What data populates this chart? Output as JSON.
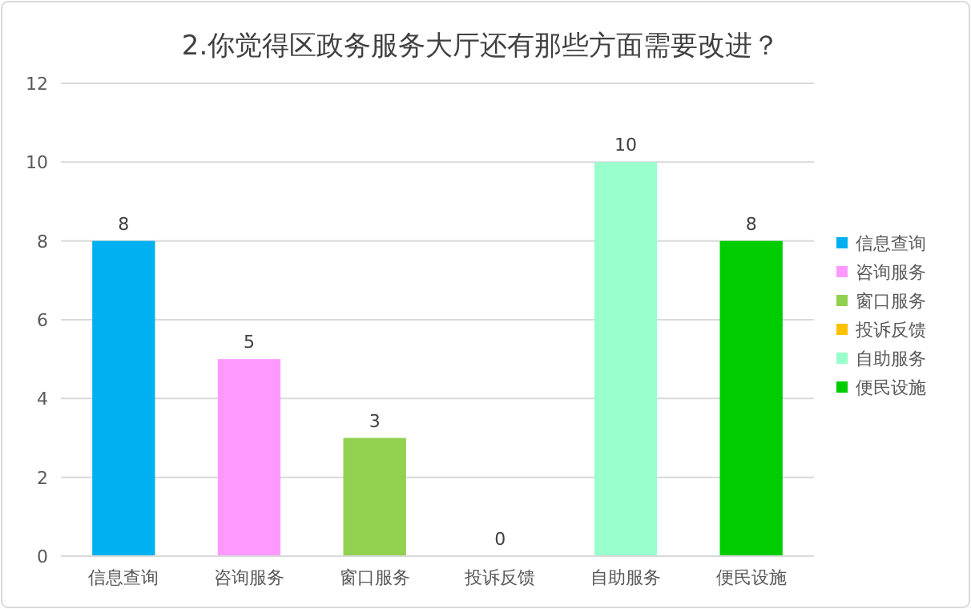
{
  "chart_data": {
    "type": "bar",
    "title": "2.你觉得区政务服务大厅还有那些方面需要改进？",
    "categories": [
      "信息查询",
      "咨询服务",
      "窗口服务",
      "投诉反馈",
      "自助服务",
      "便民设施"
    ],
    "series": [
      {
        "name": "信息查询",
        "color": "#00b0f0",
        "values": [
          8,
          null,
          null,
          null,
          null,
          null
        ]
      },
      {
        "name": "咨询服务",
        "color": "#ff99ff",
        "values": [
          null,
          5,
          null,
          null,
          null,
          null
        ]
      },
      {
        "name": "窗口服务",
        "color": "#92d050",
        "values": [
          null,
          null,
          3,
          null,
          null,
          null
        ]
      },
      {
        "name": "投诉反馈",
        "color": "#ffc000",
        "values": [
          null,
          null,
          null,
          0,
          null,
          null
        ]
      },
      {
        "name": "自助服务",
        "color": "#99ffcc",
        "values": [
          null,
          null,
          null,
          null,
          10,
          null
        ]
      },
      {
        "name": "便民设施",
        "color": "#00cc00",
        "values": [
          null,
          null,
          null,
          null,
          null,
          8
        ]
      }
    ],
    "ylim": [
      0,
      12
    ],
    "yticks": [
      0,
      2,
      4,
      6,
      8,
      10,
      12
    ],
    "grid": "y",
    "legend": "right",
    "data_labels": true
  }
}
